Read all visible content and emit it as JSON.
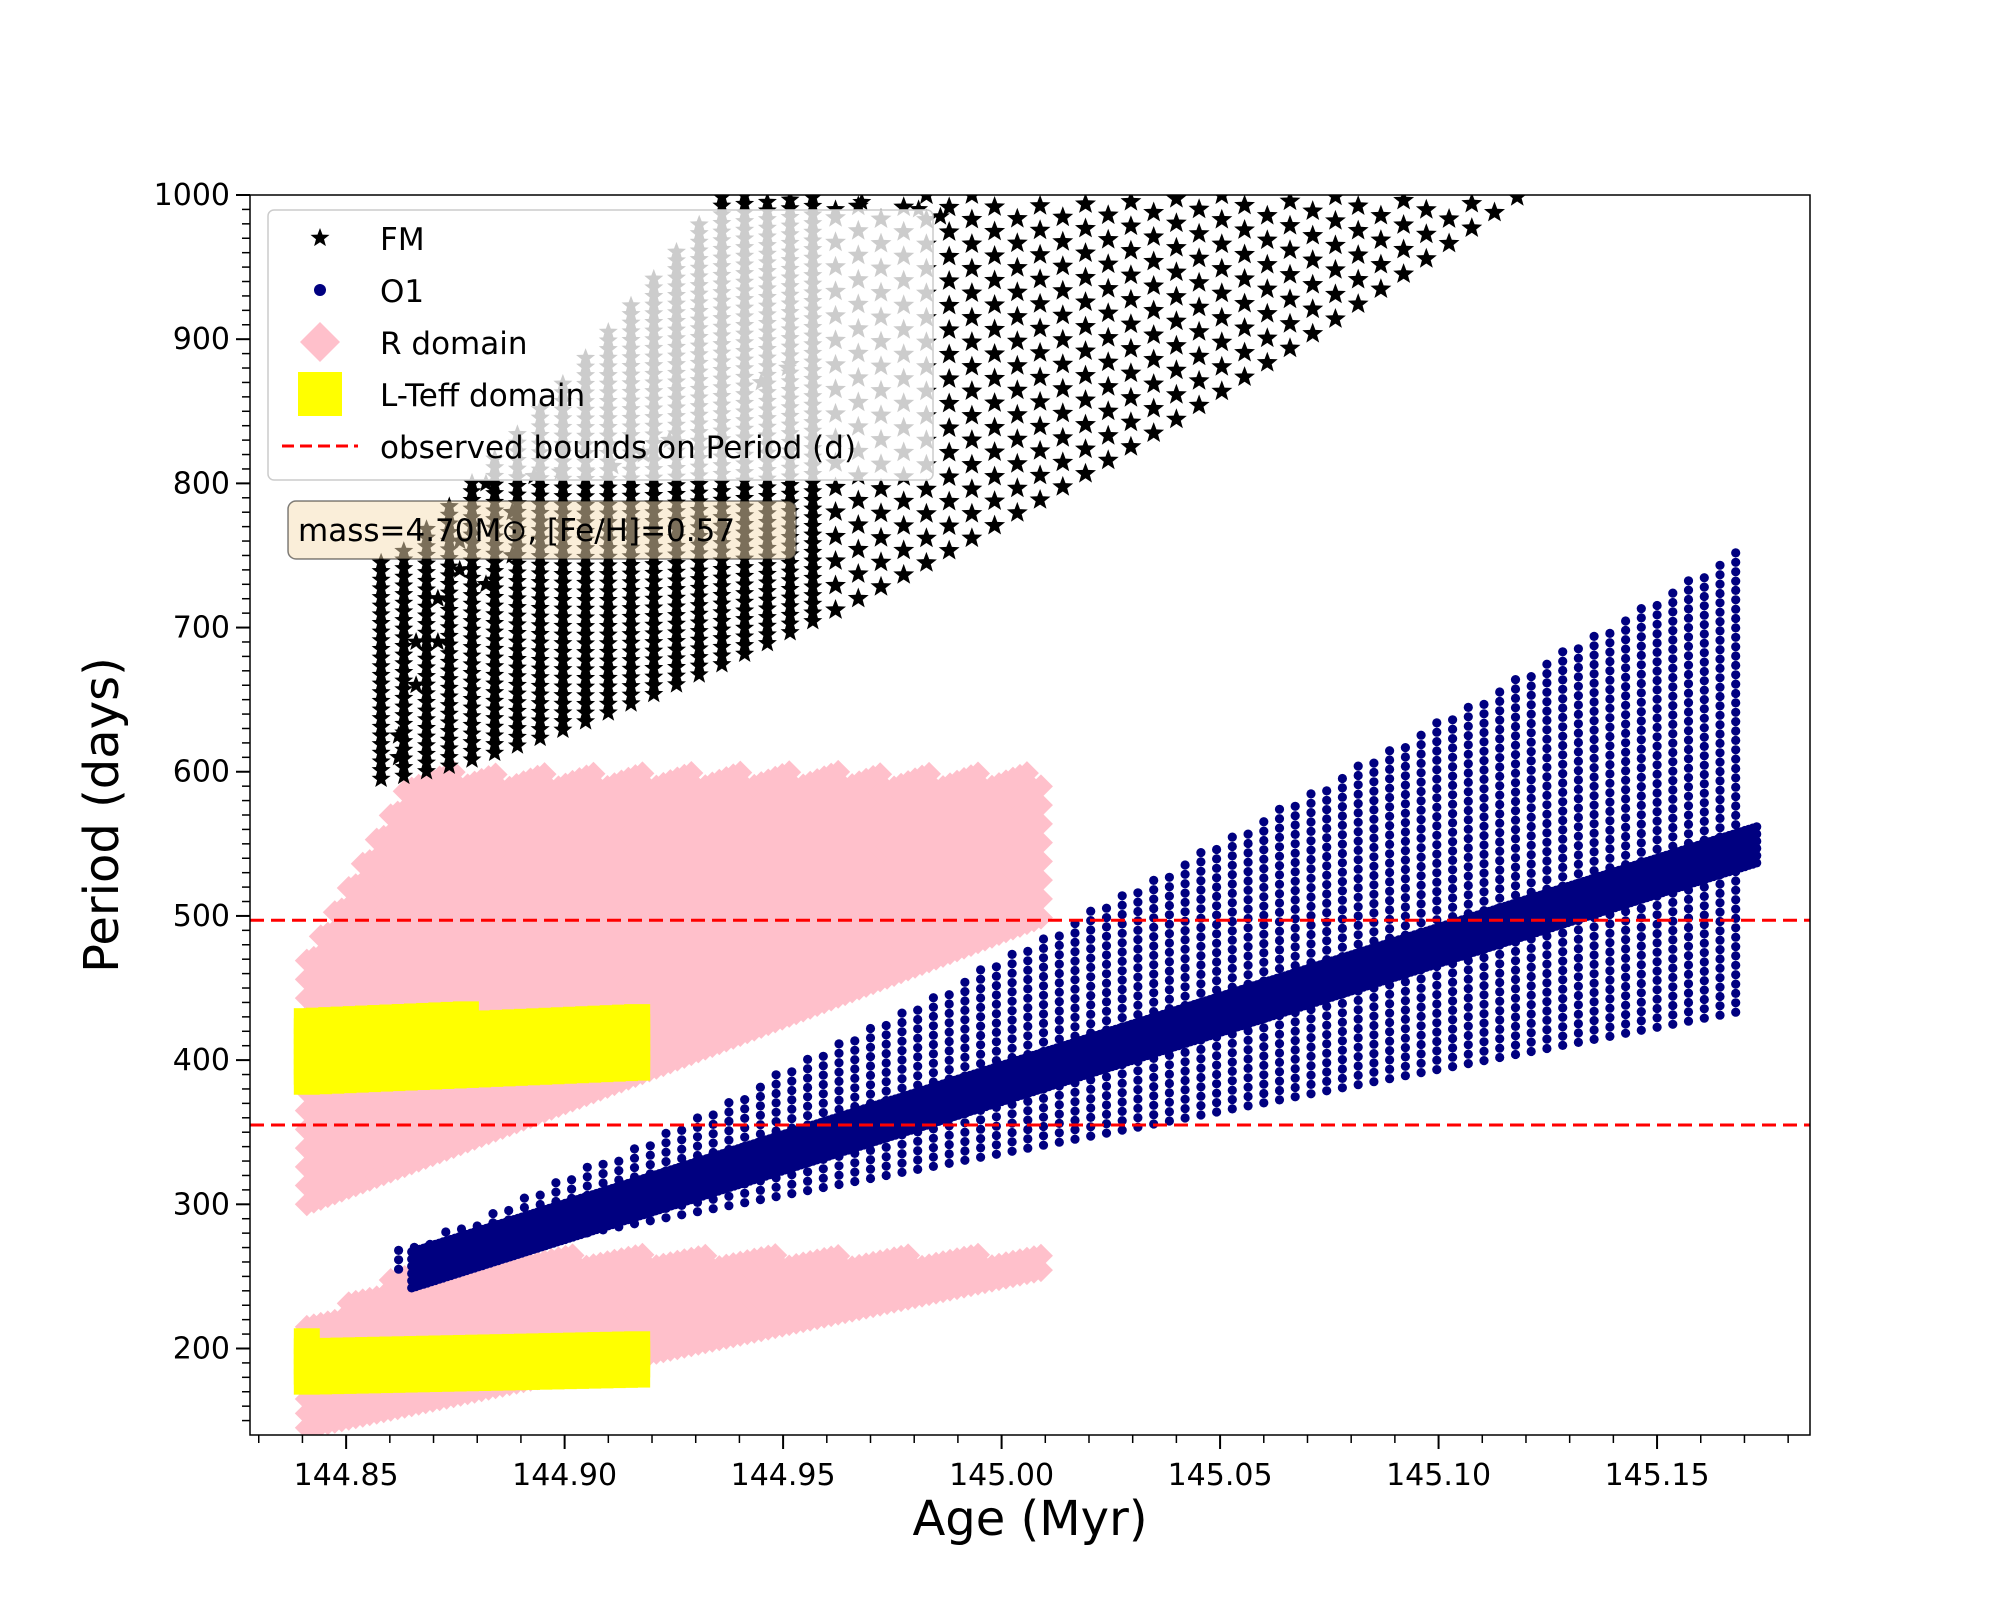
{
  "chart_data": {
    "type": "scatter",
    "xlabel": "Age (Myr)",
    "ylabel": "Period (days)",
    "xlim": [
      144.828,
      145.185
    ],
    "ylim": [
      140,
      1000
    ],
    "xticks": [
      144.85,
      144.9,
      144.95,
      145.0,
      145.05,
      145.1,
      145.15
    ],
    "xtick_labels": [
      "144.85",
      "144.90",
      "144.95",
      "145.00",
      "145.05",
      "145.10",
      "145.15"
    ],
    "yticks": [
      200,
      300,
      400,
      500,
      600,
      700,
      800,
      900,
      1000
    ],
    "ytick_labels": [
      "200",
      "300",
      "400",
      "500",
      "600",
      "700",
      "800",
      "900",
      "1000"
    ],
    "annotation": "mass=4.70M⊙, [Fe/H]=0.57",
    "legend_position": "upper left",
    "series": [
      {
        "name": "FM",
        "marker": "star",
        "color": "#000000",
        "age_range": [
          144.855,
          145.12
        ],
        "period_lower_at_start": 600,
        "period_lower_at_end": 1000
      },
      {
        "name": "O1",
        "marker": "circle",
        "color": "#000080",
        "age_range": [
          144.86,
          145.172
        ],
        "period_lower_at_start": 255,
        "period_upper_at_end": 757
      },
      {
        "name": "R domain",
        "marker": "diamond",
        "color": "#ffc0cb",
        "age_range": [
          144.84,
          145.01
        ],
        "period_bands": [
          [
            140,
            265
          ],
          [
            300,
            600
          ]
        ]
      },
      {
        "name": "L-Teff domain",
        "marker": "square",
        "color": "#ffff00",
        "age_range": [
          144.84,
          144.918
        ],
        "period_bands": [
          [
            175,
            205
          ],
          [
            385,
            435
          ]
        ]
      },
      {
        "name": "observed bounds on Period (d)",
        "marker": "dashed-line",
        "color": "#ff0000",
        "values": [
          355,
          497
        ]
      }
    ]
  }
}
